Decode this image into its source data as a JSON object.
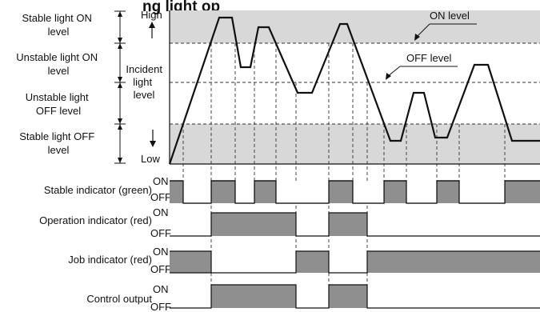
{
  "title_partial": "ng light op",
  "colors": {
    "band_fill": "#d8d8d8",
    "signal_fill": "#8f8f8f",
    "line": "#111111",
    "dash": "#333333"
  },
  "levels": {
    "stable_on": [
      "Stable light ON",
      "level"
    ],
    "unstable_on": [
      "Unstable light ON",
      "level"
    ],
    "unstable_off": [
      "Unstable light",
      "OFF level"
    ],
    "stable_off": [
      "Stable light OFF",
      "level"
    ]
  },
  "axis": {
    "high": "High",
    "low": "Low",
    "incident": [
      "Incident",
      "light",
      "level"
    ]
  },
  "level_labels": {
    "on": "ON level",
    "off": "OFF level"
  },
  "indicators": [
    {
      "label": "Stable indicator (green)",
      "on": "ON",
      "off": "OFF"
    },
    {
      "label": "Operation indicator (red)",
      "on": "ON",
      "off": "OFF"
    },
    {
      "label": "Job indicator (red)",
      "on": "ON",
      "off": "OFF"
    },
    {
      "label": "Control output",
      "on": "ON",
      "off": "OFF"
    }
  ]
}
